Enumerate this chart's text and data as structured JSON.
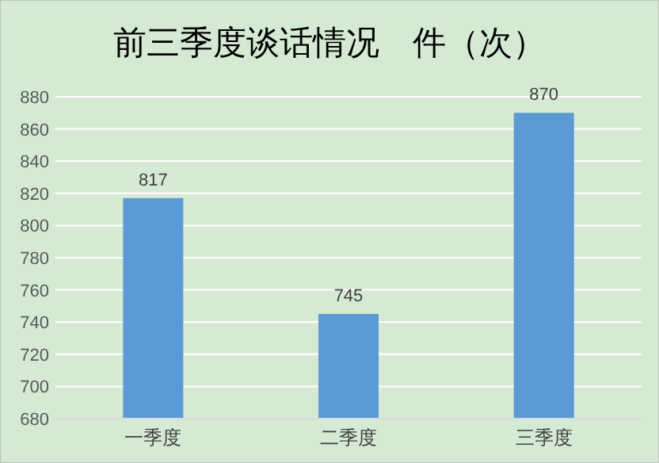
{
  "chart_data": {
    "type": "bar",
    "title": "前三季度谈话情况　件（次）",
    "categories": [
      "一季度",
      "二季度",
      "三季度"
    ],
    "values": [
      817,
      745,
      870
    ],
    "color": "#5b9bd5",
    "ylim": [
      680,
      880
    ],
    "yticks": [
      680,
      700,
      720,
      740,
      760,
      780,
      800,
      820,
      840,
      860,
      880
    ],
    "grid": "y",
    "data_labels": true
  }
}
